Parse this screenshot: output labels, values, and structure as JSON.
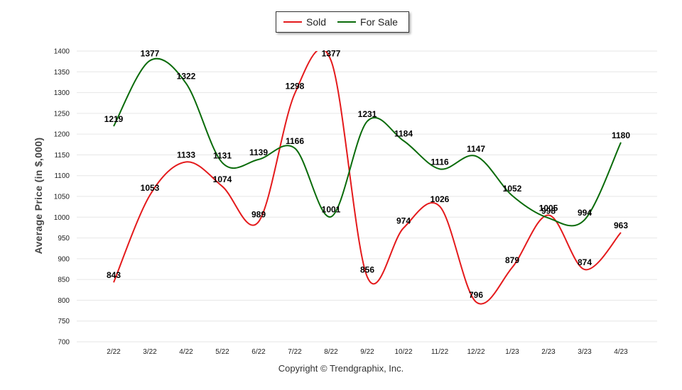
{
  "chart_data": {
    "type": "line",
    "title": "",
    "ylabel": "Average Price (in $,000)",
    "xlabel": "",
    "categories": [
      "2/22",
      "3/22",
      "4/22",
      "5/22",
      "6/22",
      "7/22",
      "8/22",
      "9/22",
      "10/22",
      "11/22",
      "12/22",
      "1/23",
      "2/23",
      "3/23",
      "4/23"
    ],
    "ylim": [
      700,
      1400
    ],
    "yticks": [
      700,
      750,
      800,
      850,
      900,
      950,
      1000,
      1050,
      1100,
      1150,
      1200,
      1250,
      1300,
      1350,
      1400
    ],
    "grid": true,
    "legend_position": "top-center",
    "series": [
      {
        "name": "Sold",
        "color": "#e41a1c",
        "values": [
          843,
          1053,
          1133,
          1074,
          989,
          1298,
          1377,
          856,
          974,
          1026,
          796,
          879,
          1005,
          874,
          963
        ]
      },
      {
        "name": "For Sale",
        "color": "#0a6b0a",
        "values": [
          1219,
          1377,
          1322,
          1131,
          1139,
          1166,
          1001,
          1231,
          1184,
          1116,
          1147,
          1052,
          998,
          994,
          1180
        ]
      }
    ]
  },
  "copyright": "Copyright © Trendgraphix, Inc."
}
